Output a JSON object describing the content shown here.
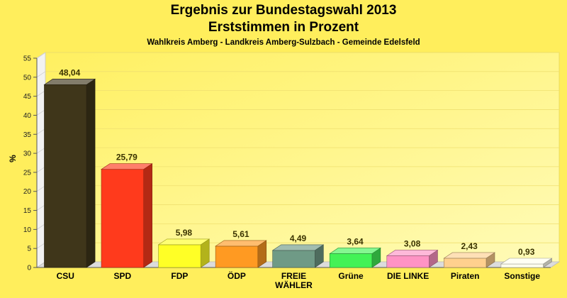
{
  "header": {
    "title_line1": "Ergebnis zur Bundestagswahl 2013",
    "title_line2": "Erststimmen in Prozent",
    "subtitle": "Wahlkreis Amberg - Landkreis Amberg-Sulzbach - Gemeinde Edelsfeld"
  },
  "chart_data": {
    "type": "bar",
    "categories": [
      "CSU",
      "SPD",
      "FDP",
      "ÖDP",
      "FREIE WÄHLER",
      "Grüne",
      "DIE LINKE",
      "Piraten",
      "Sonstige"
    ],
    "category_lines": [
      [
        "CSU"
      ],
      [
        "SPD"
      ],
      [
        "FDP"
      ],
      [
        "ÖDP"
      ],
      [
        "FREIE",
        "WÄHLER"
      ],
      [
        "Grüne"
      ],
      [
        "DIE LINKE"
      ],
      [
        "Piraten"
      ],
      [
        "Sonstige"
      ]
    ],
    "values": [
      48.04,
      25.79,
      5.98,
      5.61,
      4.49,
      3.64,
      3.08,
      2.43,
      0.93
    ],
    "value_labels": [
      "48,04",
      "25,79",
      "5,98",
      "5,61",
      "4,49",
      "3,64",
      "3,08",
      "2,43",
      "0,93"
    ],
    "colors": [
      "#3F361A",
      "#FF3A1C",
      "#FFFF26",
      "#FF9A22",
      "#6F9A86",
      "#43F256",
      "#FF93C4",
      "#FFD08E",
      "#FFFFEE"
    ],
    "ylabel": "%",
    "ylim": [
      0,
      55
    ],
    "yticks": [
      0,
      5,
      10,
      15,
      20,
      25,
      30,
      35,
      40,
      45,
      50,
      55
    ],
    "grid": true,
    "legend": "none",
    "style": "3d"
  }
}
